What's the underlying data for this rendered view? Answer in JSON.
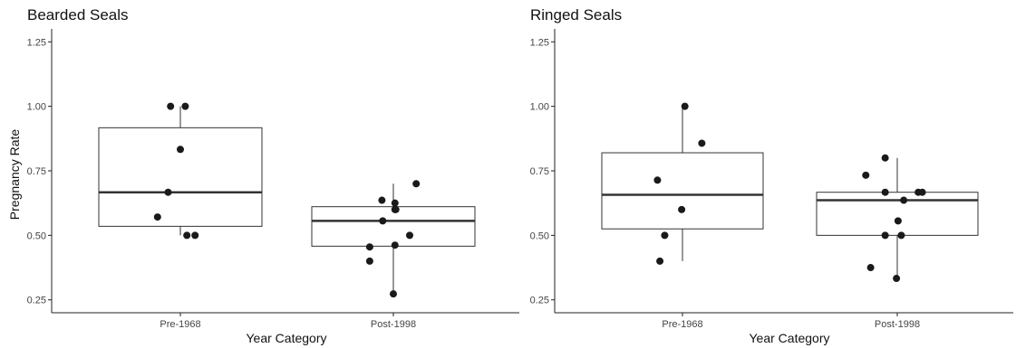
{
  "chart_data": [
    {
      "type": "boxplot",
      "title": "Bearded Seals",
      "xlabel": "Year Category",
      "ylabel": "Pregnancy Rate",
      "ylim": [
        0.2,
        1.3
      ],
      "yticks": [
        "0.25",
        "0.50",
        "0.75",
        "1.00",
        "1.25"
      ],
      "categories": [
        "Pre-1968",
        "Post-1998"
      ],
      "boxes": [
        {
          "category": "Pre-1968",
          "whisker_low": 0.5,
          "q1": 0.535,
          "median": 0.667,
          "q3": 0.917,
          "whisker_high": 1.0
        },
        {
          "category": "Post-1998",
          "whisker_low": 0.273,
          "q1": 0.458,
          "median": 0.556,
          "q3": 0.611,
          "whisker_high": 0.7
        }
      ],
      "points": [
        {
          "category": "Pre-1968",
          "jitter": -0.28,
          "y": 0.571
        },
        {
          "category": "Pre-1968",
          "jitter": -0.12,
          "y": 1.0
        },
        {
          "category": "Pre-1968",
          "jitter": -0.15,
          "y": 0.667
        },
        {
          "category": "Pre-1968",
          "jitter": 0.0,
          "y": 0.833
        },
        {
          "category": "Pre-1968",
          "jitter": 0.06,
          "y": 1.0
        },
        {
          "category": "Pre-1968",
          "jitter": 0.08,
          "y": 0.5
        },
        {
          "category": "Pre-1968",
          "jitter": 0.18,
          "y": 0.5
        },
        {
          "category": "Post-1998",
          "jitter": -0.29,
          "y": 0.4
        },
        {
          "category": "Post-1998",
          "jitter": -0.29,
          "y": 0.455
        },
        {
          "category": "Post-1998",
          "jitter": -0.14,
          "y": 0.636
        },
        {
          "category": "Post-1998",
          "jitter": -0.13,
          "y": 0.556
        },
        {
          "category": "Post-1998",
          "jitter": 0.0,
          "y": 0.273
        },
        {
          "category": "Post-1998",
          "jitter": 0.02,
          "y": 0.625
        },
        {
          "category": "Post-1998",
          "jitter": 0.02,
          "y": 0.6
        },
        {
          "category": "Post-1998",
          "jitter": 0.03,
          "y": 0.6
        },
        {
          "category": "Post-1998",
          "jitter": 0.02,
          "y": 0.462
        },
        {
          "category": "Post-1998",
          "jitter": 0.2,
          "y": 0.5
        },
        {
          "category": "Post-1998",
          "jitter": 0.28,
          "y": 0.7
        }
      ],
      "grid": false
    },
    {
      "type": "boxplot",
      "title": "Ringed Seals",
      "xlabel": "Year Category",
      "ylabel": "",
      "ylim": [
        0.2,
        1.3
      ],
      "yticks": [
        "0.25",
        "0.50",
        "0.75",
        "1.00",
        "1.25"
      ],
      "categories": [
        "Pre-1968",
        "Post-1998"
      ],
      "boxes": [
        {
          "category": "Pre-1968",
          "whisker_low": 0.4,
          "q1": 0.525,
          "median": 0.657,
          "q3": 0.82,
          "whisker_high": 1.0
        },
        {
          "category": "Post-1998",
          "whisker_low": 0.333,
          "q1": 0.5,
          "median": 0.636,
          "q3": 0.667,
          "whisker_high": 0.8
        }
      ],
      "points": [
        {
          "category": "Pre-1968",
          "jitter": -0.28,
          "y": 0.4
        },
        {
          "category": "Pre-1968",
          "jitter": -0.22,
          "y": 0.5
        },
        {
          "category": "Pre-1968",
          "jitter": -0.31,
          "y": 0.714
        },
        {
          "category": "Pre-1968",
          "jitter": -0.01,
          "y": 0.6
        },
        {
          "category": "Pre-1968",
          "jitter": 0.03,
          "y": 1.0
        },
        {
          "category": "Pre-1968",
          "jitter": 0.24,
          "y": 0.857
        },
        {
          "category": "Post-1998",
          "jitter": -0.33,
          "y": 0.375
        },
        {
          "category": "Post-1998",
          "jitter": -0.39,
          "y": 0.733
        },
        {
          "category": "Post-1998",
          "jitter": -0.15,
          "y": 0.8
        },
        {
          "category": "Post-1998",
          "jitter": -0.15,
          "y": 0.667
        },
        {
          "category": "Post-1998",
          "jitter": -0.15,
          "y": 0.5
        },
        {
          "category": "Post-1998",
          "jitter": -0.01,
          "y": 0.333
        },
        {
          "category": "Post-1998",
          "jitter": 0.01,
          "y": 0.556
        },
        {
          "category": "Post-1998",
          "jitter": 0.05,
          "y": 0.5
        },
        {
          "category": "Post-1998",
          "jitter": 0.08,
          "y": 0.636
        },
        {
          "category": "Post-1998",
          "jitter": 0.26,
          "y": 0.667
        },
        {
          "category": "Post-1998",
          "jitter": 0.31,
          "y": 0.667
        }
      ],
      "grid": false
    }
  ]
}
